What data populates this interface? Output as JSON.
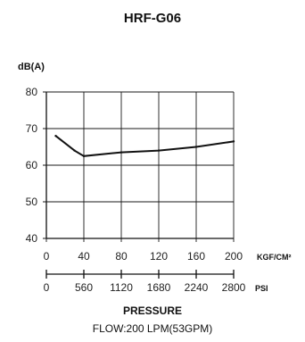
{
  "chart_data": {
    "type": "line",
    "title": "HRF-G06",
    "ylabel": "dB(A)",
    "ylim": [
      40,
      80
    ],
    "yticks": [
      "40",
      "50",
      "60",
      "70",
      "80"
    ],
    "xlim": [
      0,
      200
    ],
    "xticks": [
      "0",
      "40",
      "80",
      "120",
      "160",
      "200"
    ],
    "xunit": "KGF/CM²",
    "x2ticks": [
      "0",
      "560",
      "1120",
      "1680",
      "2240",
      "2800"
    ],
    "x2unit": "PSI",
    "xlabel": "PRESSURE",
    "caption": "FLOW:200 LPM(53GPM)",
    "grid": true,
    "series": [
      {
        "x": [
          10,
          30,
          40,
          80,
          120,
          160,
          200
        ],
        "y": [
          68,
          64,
          62.5,
          63.5,
          64,
          65,
          66.5
        ]
      }
    ]
  }
}
